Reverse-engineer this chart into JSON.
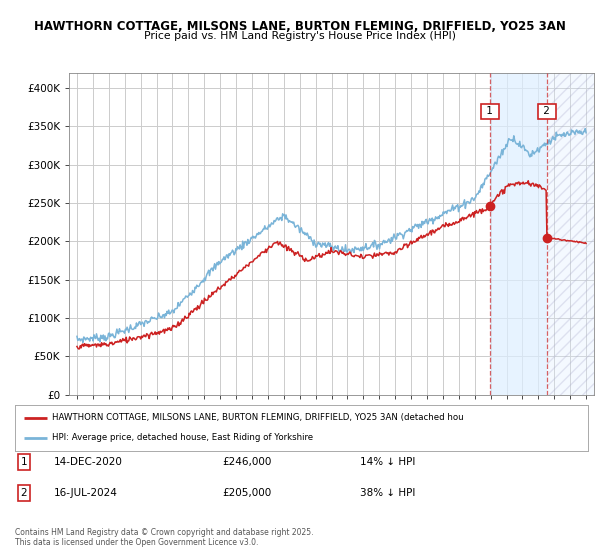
{
  "title_line1": "HAWTHORN COTTAGE, MILSONS LANE, BURTON FLEMING, DRIFFIELD, YO25 3AN",
  "title_line2": "Price paid vs. HM Land Registry's House Price Index (HPI)",
  "ylabel_ticks": [
    "£0",
    "£50K",
    "£100K",
    "£150K",
    "£200K",
    "£250K",
    "£300K",
    "£350K",
    "£400K"
  ],
  "ytick_vals": [
    0,
    50000,
    100000,
    150000,
    200000,
    250000,
    300000,
    350000,
    400000
  ],
  "ylim": [
    0,
    420000
  ],
  "xlim_start": 1994.5,
  "xlim_end": 2027.5,
  "hpi_color": "#7ab4d8",
  "price_color": "#cc2222",
  "grid_color": "#cccccc",
  "bg_color": "#ffffff",
  "legend_label_red": "HAWTHORN COTTAGE, MILSONS LANE, BURTON FLEMING, DRIFFIELD, YO25 3AN (detached hou",
  "legend_label_blue": "HPI: Average price, detached house, East Riding of Yorkshire",
  "sale1_date": "14-DEC-2020",
  "sale1_price": "£246,000",
  "sale1_hpi": "14% ↓ HPI",
  "sale1_year": 2020.96,
  "sale1_value": 246000,
  "sale2_date": "16-JUL-2024",
  "sale2_price": "£205,000",
  "sale2_hpi": "38% ↓ HPI",
  "sale2_year": 2024.54,
  "sale2_value": 205000,
  "footnote": "Contains HM Land Registry data © Crown copyright and database right 2025.\nThis data is licensed under the Open Government Licence v3.0.",
  "shade_region_start": 2020.96,
  "shade_region_end": 2024.54,
  "hatch_region_start": 2024.54,
  "hatch_region_end": 2027.5
}
